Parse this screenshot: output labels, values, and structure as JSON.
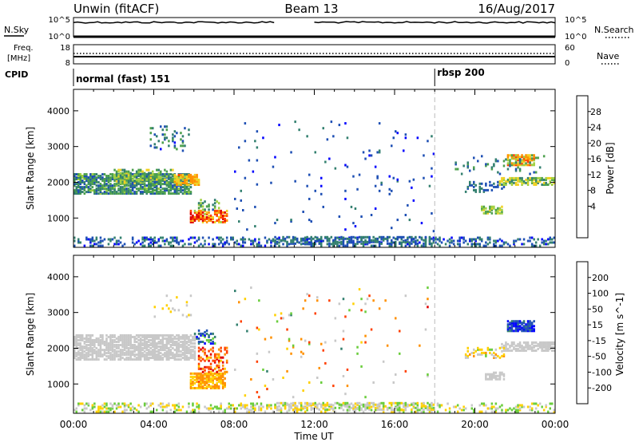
{
  "header": {
    "station": "Unwin (fitACF)",
    "beam": "Beam 13",
    "date": "16/Aug/2017"
  },
  "noise_panel": {
    "left_label": "N.Sky",
    "right_label": "N.Search",
    "y_ticks_left": [
      "10^5",
      "10^0"
    ],
    "y_ticks_right": [
      "10^5",
      "10^0"
    ]
  },
  "freq_panel": {
    "left_label_line1": "Freq.",
    "left_label_line2": "[MHz]",
    "right_label": "Nave",
    "y_ticks_left": [
      "18",
      "8"
    ],
    "y_ticks_right": [
      "60",
      "0"
    ]
  },
  "cpid_panel": {
    "label": "CPID",
    "segments": [
      {
        "name": "normal (fast) 151",
        "start_hour": 0,
        "end_hour": 18
      },
      {
        "name": "rbsp 200",
        "start_hour": 18,
        "end_hour": 24
      }
    ]
  },
  "x_axis": {
    "label": "Time UT",
    "ticks": [
      "00:00",
      "04:00",
      "08:00",
      "12:00",
      "16:00",
      "20:00",
      "00:00"
    ],
    "range_hours": [
      0,
      24
    ]
  },
  "power_panel": {
    "ylabel": "Slant Range [km]",
    "y_ticks": [
      "4000",
      "3000",
      "2000",
      "1000"
    ],
    "colorbar_label": "Power [dB]",
    "colorbar_ticks": [
      "28",
      "24",
      "20",
      "16",
      "12",
      "8",
      "4"
    ],
    "colors": [
      "#0000ff",
      "#1e4fb4",
      "#33806f",
      "#4ca04c",
      "#a0d040",
      "#f0d020",
      "#ff9000",
      "#ff4000",
      "#e00000"
    ]
  },
  "velocity_panel": {
    "ylabel": "Slant Range [km]",
    "y_ticks": [
      "4000",
      "3000",
      "2000",
      "1000"
    ],
    "colorbar_label": "Velocity [m s^-1]",
    "colorbar_ticks": [
      "200",
      "100",
      "50",
      "15",
      "-15",
      "-50",
      "-100",
      "-200"
    ],
    "colors": [
      "#0000ff",
      "#1e4fb4",
      "#33806f",
      "#6acd3c",
      "#c8c8c8",
      "#ffd000",
      "#ff9000",
      "#ff4000",
      "#e00000"
    ]
  },
  "chart_data": {
    "type": "heatmap",
    "x_range_hours": [
      0,
      24
    ],
    "y_range_km": [
      180,
      4600
    ],
    "y_ticks_km": [
      1000,
      2000,
      3000,
      4000
    ],
    "power_scale_db": [
      0,
      30
    ],
    "velocity_scale_ms": [
      -250,
      250
    ],
    "regions_power": [
      {
        "t": [
          0.0,
          5.8
        ],
        "r": [
          1650,
          2200
        ],
        "density": 0.75,
        "val": [
          5,
          14
        ]
      },
      {
        "t": [
          2.0,
          5.0
        ],
        "r": [
          1950,
          2350
        ],
        "density": 0.5,
        "val": [
          8,
          18
        ]
      },
      {
        "t": [
          5.0,
          6.2
        ],
        "r": [
          1900,
          2200
        ],
        "density": 0.75,
        "val": [
          16,
          24
        ]
      },
      {
        "t": [
          3.8,
          5.8
        ],
        "r": [
          2850,
          3550
        ],
        "density": 0.12,
        "val": [
          3,
          12
        ]
      },
      {
        "t": [
          5.8,
          7.6
        ],
        "r": [
          850,
          1200
        ],
        "density": 0.7,
        "val": [
          16,
          30
        ]
      },
      {
        "t": [
          6.2,
          7.2
        ],
        "r": [
          1200,
          1500
        ],
        "density": 0.35,
        "val": [
          6,
          16
        ]
      },
      {
        "t": [
          0.0,
          24.0
        ],
        "r": [
          190,
          450
        ],
        "density": 0.3,
        "val": [
          2,
          10
        ]
      },
      {
        "t": [
          10.0,
          18.0
        ],
        "r": [
          250,
          450
        ],
        "density": 0.45,
        "val": [
          4,
          10
        ]
      },
      {
        "t": [
          8.0,
          18.0
        ],
        "r": [
          600,
          3700
        ],
        "density": 0.015,
        "val": [
          2,
          8
        ]
      },
      {
        "t": [
          20.3,
          21.4
        ],
        "r": [
          1100,
          1300
        ],
        "density": 0.7,
        "val": [
          10,
          18
        ]
      },
      {
        "t": [
          19.5,
          21.5
        ],
        "r": [
          1700,
          2000
        ],
        "density": 0.3,
        "val": [
          4,
          10
        ]
      },
      {
        "t": [
          21.2,
          24.0
        ],
        "r": [
          1900,
          2100
        ],
        "density": 0.7,
        "val": [
          8,
          20
        ]
      },
      {
        "t": [
          21.6,
          23.0
        ],
        "r": [
          2450,
          2750
        ],
        "density": 0.8,
        "val": [
          12,
          26
        ]
      },
      {
        "t": [
          19.0,
          23.5
        ],
        "r": [
          2200,
          2700
        ],
        "density": 0.08,
        "val": [
          4,
          12
        ]
      }
    ],
    "regions_velocity": [
      {
        "t": [
          0.0,
          6.0
        ],
        "r": [
          1650,
          2350
        ],
        "density": 0.75,
        "val": [
          -15,
          15
        ]
      },
      {
        "t": [
          4.0,
          5.8
        ],
        "r": [
          2850,
          3500
        ],
        "density": 0.12,
        "val": [
          -60,
          20
        ]
      },
      {
        "t": [
          5.8,
          7.5
        ],
        "r": [
          850,
          1300
        ],
        "density": 0.75,
        "val": [
          -140,
          -40
        ]
      },
      {
        "t": [
          6.2,
          7.6
        ],
        "r": [
          1300,
          2000
        ],
        "density": 0.3,
        "val": [
          -230,
          -60
        ]
      },
      {
        "t": [
          6.0,
          7.0
        ],
        "r": [
          2100,
          2500
        ],
        "density": 0.3,
        "val": [
          60,
          220
        ]
      },
      {
        "t": [
          0.0,
          24.0
        ],
        "r": [
          190,
          450
        ],
        "density": 0.3,
        "val": [
          -80,
          80
        ]
      },
      {
        "t": [
          10.0,
          18.0
        ],
        "r": [
          250,
          450
        ],
        "density": 0.45,
        "val": [
          -60,
          60
        ]
      },
      {
        "t": [
          8.0,
          18.0
        ],
        "r": [
          600,
          3700
        ],
        "density": 0.015,
        "val": [
          -200,
          100
        ]
      },
      {
        "t": [
          20.5,
          21.5
        ],
        "r": [
          1100,
          1300
        ],
        "density": 0.65,
        "val": [
          -15,
          15
        ]
      },
      {
        "t": [
          21.3,
          24.0
        ],
        "r": [
          1900,
          2150
        ],
        "density": 0.7,
        "val": [
          -15,
          15
        ]
      },
      {
        "t": [
          21.6,
          23.0
        ],
        "r": [
          2450,
          2750
        ],
        "density": 0.8,
        "val": [
          120,
          240
        ]
      },
      {
        "t": [
          19.5,
          21.5
        ],
        "r": [
          1700,
          2000
        ],
        "density": 0.25,
        "val": [
          -100,
          40
        ]
      }
    ]
  }
}
